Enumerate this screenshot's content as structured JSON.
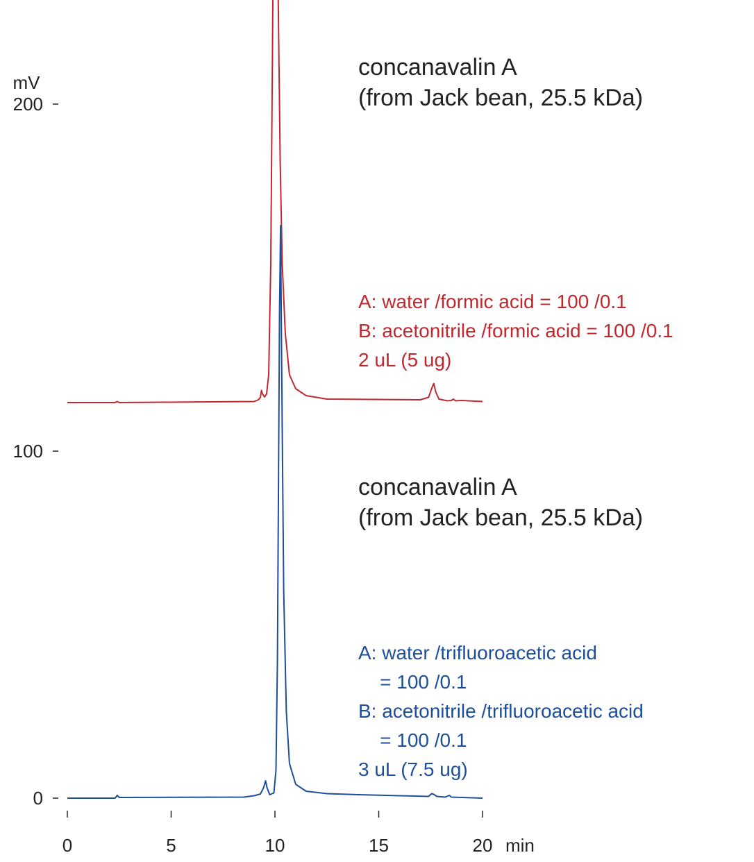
{
  "chart_data": {
    "type": "line",
    "xlabel": "min",
    "ylabel": "mV",
    "xlim": [
      0,
      20
    ],
    "ylim": [
      0,
      230
    ],
    "x_ticks": [
      0,
      5,
      10,
      15,
      20
    ],
    "y_ticks": [
      0,
      100,
      200
    ],
    "grid": false,
    "series": [
      {
        "color": "#c0282d",
        "baseline_offset_mV": 114,
        "points": [
          [
            0,
            0
          ],
          [
            2.3,
            0
          ],
          [
            2.4,
            0.3
          ],
          [
            2.5,
            0
          ],
          [
            9.0,
            0.3
          ],
          [
            9.2,
            0.8
          ],
          [
            9.3,
            1.5
          ],
          [
            9.35,
            3.5
          ],
          [
            9.4,
            2.5
          ],
          [
            9.5,
            1.6
          ],
          [
            9.6,
            2.5
          ],
          [
            9.7,
            8
          ],
          [
            9.8,
            40
          ],
          [
            9.88,
            100
          ],
          [
            9.95,
            160
          ],
          [
            9.98,
            200
          ],
          [
            10.05,
            180
          ],
          [
            10.15,
            120
          ],
          [
            10.25,
            70
          ],
          [
            10.35,
            40
          ],
          [
            10.5,
            20
          ],
          [
            10.7,
            8
          ],
          [
            11.0,
            4
          ],
          [
            11.5,
            2
          ],
          [
            12.5,
            1
          ],
          [
            17.0,
            0.8
          ],
          [
            17.4,
            1.5
          ],
          [
            17.55,
            4
          ],
          [
            17.65,
            5.5
          ],
          [
            17.75,
            3
          ],
          [
            17.9,
            1
          ],
          [
            18.3,
            0.5
          ],
          [
            18.5,
            0.6
          ],
          [
            18.6,
            1
          ],
          [
            18.7,
            0.5
          ],
          [
            19.0,
            0.6
          ],
          [
            20.0,
            0.3
          ]
        ]
      },
      {
        "color": "#1d4e9a",
        "baseline_offset_mV": 0,
        "points": [
          [
            0,
            0
          ],
          [
            2.3,
            0
          ],
          [
            2.4,
            0.8
          ],
          [
            2.5,
            0.2
          ],
          [
            8.5,
            0.3
          ],
          [
            9.0,
            0.7
          ],
          [
            9.3,
            1.2
          ],
          [
            9.45,
            3
          ],
          [
            9.55,
            5
          ],
          [
            9.62,
            3
          ],
          [
            9.75,
            1
          ],
          [
            9.95,
            1.5
          ],
          [
            10.05,
            8
          ],
          [
            10.12,
            40
          ],
          [
            10.18,
            100
          ],
          [
            10.22,
            140
          ],
          [
            10.27,
            165
          ],
          [
            10.33,
            120
          ],
          [
            10.42,
            60
          ],
          [
            10.55,
            25
          ],
          [
            10.7,
            10
          ],
          [
            11.0,
            4
          ],
          [
            11.5,
            2
          ],
          [
            12.5,
            1.3
          ],
          [
            14.0,
            1
          ],
          [
            17.4,
            0.5
          ],
          [
            17.55,
            1.3
          ],
          [
            17.65,
            1.1
          ],
          [
            17.8,
            0.5
          ],
          [
            18.2,
            0.3
          ],
          [
            18.4,
            0.8
          ],
          [
            18.5,
            0.3
          ],
          [
            20.0,
            0
          ]
        ]
      }
    ]
  },
  "annotations": {
    "red_title": [
      "concanavalin A",
      "(from Jack bean, 25.5 kDa)"
    ],
    "red_conditions": [
      "A: water /formic acid = 100 /0.1",
      "B: acetonitrile /formic acid = 100 /0.1",
      "2 uL (5 ug)"
    ],
    "blue_title": [
      "concanavalin A",
      "(from Jack bean, 25.5 kDa)"
    ],
    "blue_conditions": [
      "A: water /trifluoroacetic acid",
      "    = 100 /0.1",
      "B: acetonitrile /trifluoroacetic acid",
      "    = 100 /0.1",
      "3 uL (7.5 ug)"
    ],
    "colors": {
      "red": "#c0282d",
      "blue": "#1d4e9a",
      "text": "#222222"
    }
  }
}
